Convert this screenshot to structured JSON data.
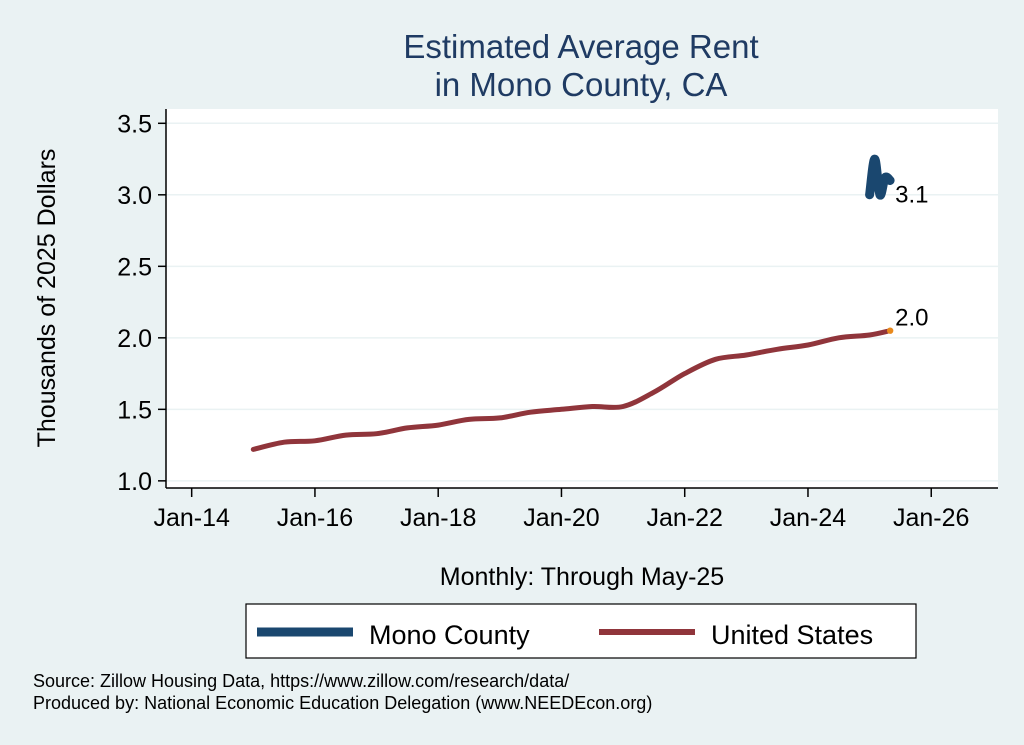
{
  "chart_data": {
    "type": "line",
    "title": [
      "Estimated Average Rent",
      "in Mono County, CA"
    ],
    "xlabel": "Monthly: Through May-25",
    "ylabel": "Thousands of 2025 Dollars",
    "ylim": [
      0.95,
      3.6
    ],
    "yticks": [
      1.0,
      1.5,
      2.0,
      2.5,
      3.0,
      3.5
    ],
    "ytick_labels": [
      "1.0",
      "1.5",
      "2.0",
      "2.5",
      "3.0",
      "3.5"
    ],
    "xlim": [
      "2013-08",
      "2027-02"
    ],
    "xticks": [
      "2014-01",
      "2016-01",
      "2018-01",
      "2020-01",
      "2022-01",
      "2024-01",
      "2026-01"
    ],
    "xtick_labels": [
      "Jan-14",
      "Jan-16",
      "Jan-18",
      "Jan-20",
      "Jan-22",
      "Jan-24",
      "Jan-26"
    ],
    "grid": true,
    "legend_position": "bottom",
    "series": [
      {
        "name": "Mono County",
        "color": "#1a476f",
        "x": [
          "2025-01",
          "2025-02",
          "2025-03",
          "2025-04",
          "2025-05"
        ],
        "y": [
          3.0,
          3.25,
          3.0,
          3.12,
          3.1
        ],
        "end_label": "3.1"
      },
      {
        "name": "United States",
        "color": "#90353b",
        "x": [
          "2015-01",
          "2015-07",
          "2016-01",
          "2016-07",
          "2017-01",
          "2017-07",
          "2018-01",
          "2018-07",
          "2019-01",
          "2019-07",
          "2020-01",
          "2020-07",
          "2021-01",
          "2021-07",
          "2022-01",
          "2022-07",
          "2023-01",
          "2023-07",
          "2024-01",
          "2024-07",
          "2025-01",
          "2025-05"
        ],
        "y": [
          1.22,
          1.27,
          1.28,
          1.32,
          1.33,
          1.37,
          1.39,
          1.43,
          1.44,
          1.48,
          1.5,
          1.52,
          1.52,
          1.62,
          1.75,
          1.85,
          1.88,
          1.92,
          1.95,
          2.0,
          2.02,
          2.05
        ],
        "end_label": "2.0",
        "end_marker_color": "#e8891c"
      }
    ]
  },
  "notes": {
    "source": "Source: Zillow Housing Data, https://www.zillow.com/research/data/",
    "produced_by": "Produced by: National Economic Education Delegation (www.NEEDEcon.org)"
  }
}
